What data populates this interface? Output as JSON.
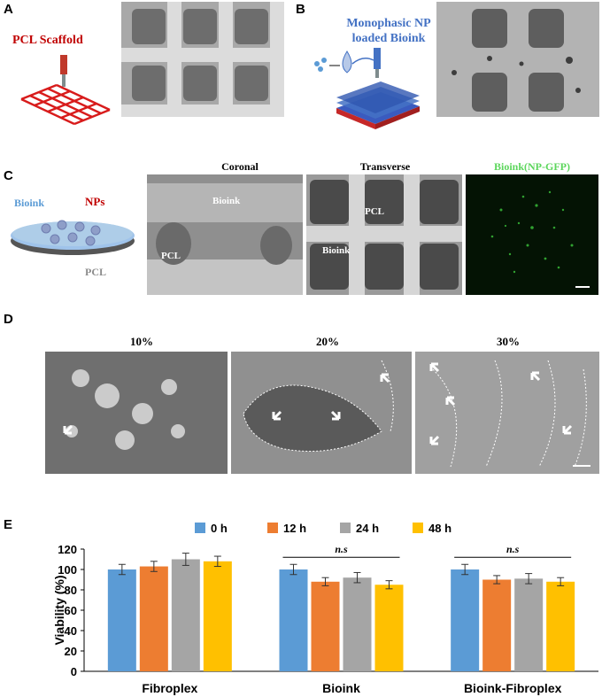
{
  "panels": {
    "A": {
      "letter": "A",
      "scaffold_label": "PCL Scaffold"
    },
    "B": {
      "letter": "B",
      "line1": "Monophasic NP",
      "line2": "loaded Bioink"
    },
    "C": {
      "letter": "C",
      "bioink": "Bioink",
      "nps": "NPs",
      "pcl": "PCL",
      "coronal_title": "Coronal",
      "coronal_bioink": "Bioink",
      "coronal_pcl": "PCL",
      "transverse_title": "Transverse",
      "transverse_pcl": "PCL",
      "transverse_bioink": "Bioink",
      "fluor_title": "Bioink(NP-GFP)"
    },
    "D": {
      "letter": "D",
      "labels": [
        "10%",
        "20%",
        "30%"
      ]
    },
    "E": {
      "letter": "E",
      "ns1": "n.s",
      "ns2": "n.s"
    }
  },
  "colors": {
    "pcl_red": "#c00000",
    "bioink_blue": "#4472c4",
    "gfp_green": "#5cd65c",
    "s0": "#5b9bd5",
    "s12": "#ed7d31",
    "s24": "#a5a5a5",
    "s48": "#ffc000"
  },
  "chart_data": {
    "type": "bar",
    "categories": [
      "Fibroplex",
      "Bioink",
      "Bioink-Fibroplex"
    ],
    "series": [
      {
        "name": "0 h",
        "values": [
          100,
          100,
          100
        ],
        "err": [
          5,
          5,
          5
        ]
      },
      {
        "name": "12 h",
        "values": [
          103,
          88,
          90
        ],
        "err": [
          5,
          4,
          4
        ]
      },
      {
        "name": "24 h",
        "values": [
          110,
          92,
          91
        ],
        "err": [
          6,
          5,
          5
        ]
      },
      {
        "name": "48 h",
        "values": [
          108,
          85,
          88
        ],
        "err": [
          5,
          4,
          4
        ]
      }
    ],
    "ylabel": "Viability (%)",
    "ylim": [
      0,
      120
    ],
    "yticks": [
      0,
      20,
      40,
      60,
      80,
      100,
      120
    ],
    "legend": "top",
    "grid": false
  }
}
